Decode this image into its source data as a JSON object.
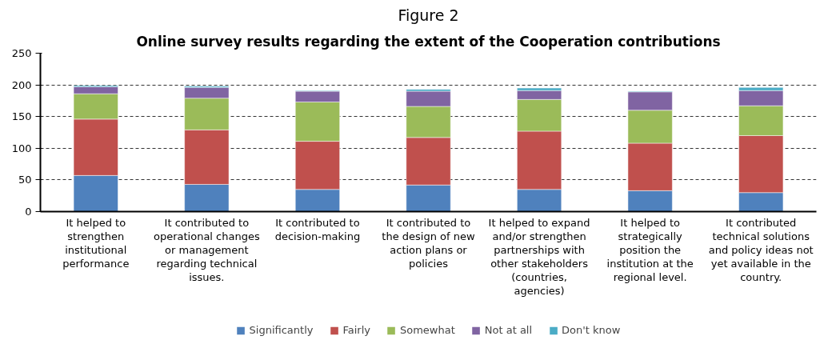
{
  "chart_data": {
    "type": "bar",
    "stacked": true,
    "title": "Figure 2",
    "subtitle": "Online survey results regarding the extent of the Cooperation contributions",
    "categories": [
      "It helped to strengthen institutional performance",
      "It contributed to operational changes or management regarding technical issues.",
      "It contributed to decision-making",
      "It contributed to the design of new action plans or policies",
      "It helped to expand and/or strengthen partnerships with other stakeholders (countries, agencies)",
      "It helped to strategically position the institution at the regional level.",
      "It contributed technical solutions and policy ideas not yet available in the country."
    ],
    "series": [
      {
        "name": "Significantly",
        "color": "#4f81bd",
        "values": [
          57,
          43,
          35,
          42,
          35,
          33,
          30
        ]
      },
      {
        "name": "Fairly",
        "color": "#c0504d",
        "values": [
          89,
          86,
          76,
          75,
          92,
          75,
          90
        ]
      },
      {
        "name": "Somewhat",
        "color": "#9bbb59",
        "values": [
          40,
          50,
          62,
          49,
          50,
          52,
          47
        ]
      },
      {
        "name": "Not at all",
        "color": "#8064a2",
        "values": [
          11,
          17,
          17,
          24,
          14,
          29,
          24
        ]
      },
      {
        "name": "Don't know",
        "color": "#4bacc6",
        "values": [
          2,
          2,
          1,
          3,
          4,
          1,
          5
        ]
      }
    ],
    "ylim": [
      0,
      250
    ],
    "yticks": [
      0,
      50,
      100,
      150,
      200,
      250
    ],
    "grid": "y",
    "legend": "bottom"
  }
}
